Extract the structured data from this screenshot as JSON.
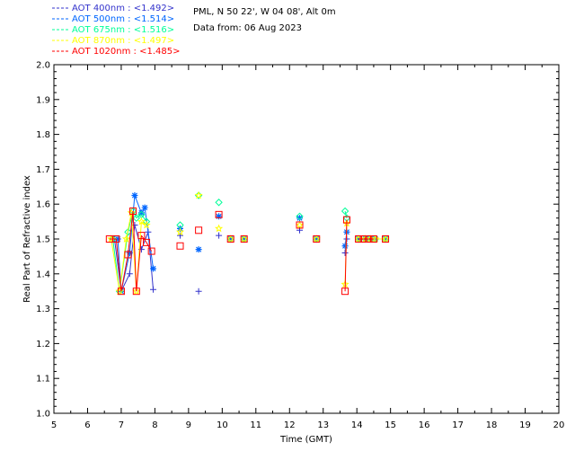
{
  "header": {
    "site": "PML, N 50 22', W 04 08', Alt 0m",
    "date": "Data from: 06 Aug 2023"
  },
  "colors": {
    "400nm": "#3333cc",
    "500nm": "#0066ff",
    "675nm": "#00ff99",
    "870nm": "#ffff00",
    "1020nm": "#ff0000",
    "axis": "#000000"
  },
  "legend": [
    {
      "text": "AOT  400nm : <1.492>",
      "color": "#3333cc"
    },
    {
      "text": "AOT  500nm : <1.514>",
      "color": "#0066ff"
    },
    {
      "text": "AOT  675nm : <1.516>",
      "color": "#00ff99"
    },
    {
      "text": "AOT  870nm : <1.497>",
      "color": "#ffff00"
    },
    {
      "text": "AOT 1020nm : <1.485>",
      "color": "#ff0000"
    }
  ],
  "chart_data": {
    "type": "scatter",
    "xlabel": "Time (GMT)",
    "ylabel": "Real Part of Refractive index",
    "xlim": [
      5,
      20
    ],
    "ylim": [
      1.0,
      2.0
    ],
    "xticks": [
      "5",
      "6",
      "7",
      "8",
      "9",
      "10",
      "11",
      "12",
      "13",
      "14",
      "15",
      "16",
      "17",
      "18",
      "19",
      "20"
    ],
    "yticks": [
      "1.0",
      "1.1",
      "1.2",
      "1.3",
      "1.4",
      "1.5",
      "1.6",
      "1.7",
      "1.8",
      "1.9",
      "2.0"
    ],
    "grid": false,
    "legend_position": "top-left, above plot",
    "series": [
      {
        "name": "AOT  400nm",
        "marker": "plus",
        "color": "#3333cc",
        "x": [
          6.8,
          7.0,
          7.25,
          7.4,
          7.6,
          7.8,
          7.95,
          8.75,
          9.3,
          9.9,
          10.25,
          10.65,
          12.3,
          12.8,
          13.65,
          13.7,
          14.05,
          14.25,
          14.4,
          14.55,
          14.85
        ],
        "y": [
          1.5,
          1.35,
          1.4,
          1.54,
          1.47,
          1.52,
          1.355,
          1.51,
          1.35,
          1.51,
          1.5,
          1.5,
          1.525,
          1.5,
          1.46,
          1.5,
          1.5,
          1.5,
          1.5,
          1.5,
          1.5
        ]
      },
      {
        "name": "AOT  500nm",
        "marker": "asterisk",
        "color": "#0066ff",
        "x": [
          6.9,
          7.0,
          7.25,
          7.4,
          7.6,
          7.7,
          7.95,
          8.75,
          9.3,
          9.9,
          10.25,
          10.65,
          12.3,
          12.8,
          13.65,
          13.7,
          14.05,
          14.25,
          14.4,
          14.55,
          14.85
        ],
        "y": [
          1.5,
          1.35,
          1.46,
          1.625,
          1.575,
          1.59,
          1.415,
          1.53,
          1.47,
          1.565,
          1.5,
          1.5,
          1.56,
          1.5,
          1.48,
          1.52,
          1.5,
          1.5,
          1.5,
          1.5,
          1.5
        ]
      },
      {
        "name": "AOT  675nm",
        "marker": "diamond",
        "color": "#00ff99",
        "x": [
          6.75,
          6.95,
          7.2,
          7.35,
          7.45,
          7.6,
          7.75,
          8.75,
          9.3,
          9.9,
          10.25,
          10.65,
          12.3,
          12.8,
          13.65,
          13.7,
          14.05,
          14.25,
          14.4,
          14.55,
          14.85
        ],
        "y": [
          1.5,
          1.35,
          1.52,
          1.58,
          1.56,
          1.57,
          1.55,
          1.54,
          1.625,
          1.605,
          1.5,
          1.5,
          1.565,
          1.5,
          1.58,
          1.56,
          1.5,
          1.5,
          1.5,
          1.5,
          1.5
        ]
      },
      {
        "name": "AOT  870nm",
        "marker": "star",
        "color": "#ffff00",
        "x": [
          6.7,
          6.95,
          7.15,
          7.3,
          7.45,
          7.6,
          7.75,
          8.75,
          9.3,
          9.9,
          10.25,
          10.65,
          12.3,
          12.8,
          13.65,
          13.7,
          14.05,
          14.25,
          14.4,
          14.55,
          14.85
        ],
        "y": [
          1.5,
          1.35,
          1.5,
          1.575,
          1.35,
          1.55,
          1.54,
          1.52,
          1.625,
          1.53,
          1.5,
          1.5,
          1.54,
          1.5,
          1.37,
          1.545,
          1.5,
          1.5,
          1.5,
          1.5,
          1.5
        ]
      },
      {
        "name": "AOT 1020nm",
        "marker": "square",
        "color": "#ff0000",
        "x": [
          6.65,
          6.85,
          7.0,
          7.2,
          7.35,
          7.45,
          7.6,
          7.75,
          7.9,
          8.75,
          9.3,
          9.9,
          10.25,
          10.65,
          12.3,
          12.8,
          13.65,
          13.7,
          14.05,
          14.2,
          14.35,
          14.5,
          14.85
        ],
        "y": [
          1.5,
          1.5,
          1.35,
          1.455,
          1.58,
          1.35,
          1.51,
          1.49,
          1.465,
          1.48,
          1.525,
          1.57,
          1.5,
          1.5,
          1.54,
          1.5,
          1.35,
          1.555,
          1.5,
          1.5,
          1.5,
          1.5,
          1.5
        ]
      }
    ]
  }
}
